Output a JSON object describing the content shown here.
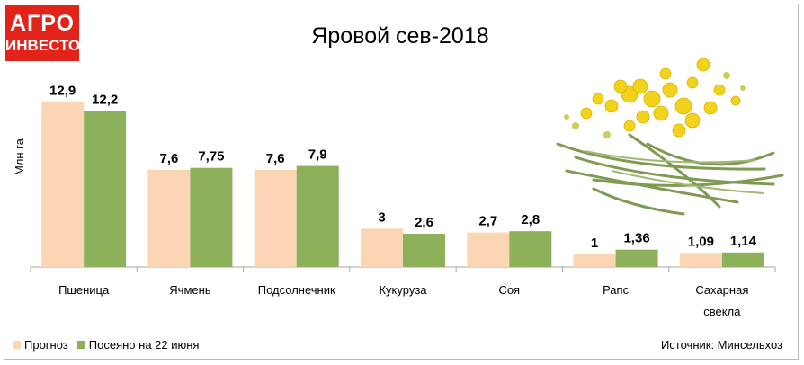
{
  "logo": {
    "line1": "АГРО",
    "line2": "ИНВЕСТОР",
    "color": "#e2231a"
  },
  "source": "Источник: Минсельхоз",
  "chart_data": {
    "type": "bar",
    "title": "Яровой сев-2018",
    "ylabel": "Млн га",
    "xlabel": "",
    "ylim": [
      0,
      14.5
    ],
    "grid": false,
    "legend_position": "bottom-left",
    "categories": [
      "Пшеница",
      "Ячмень",
      "Подсолнечник",
      "Кукуруза",
      "Соя",
      "Рапс",
      "Сахарная свекла"
    ],
    "series": [
      {
        "name": "Прогноз",
        "color": "#fcd5b5",
        "values": [
          12.9,
          7.6,
          7.6,
          3,
          2.7,
          1,
          1.09
        ],
        "labels": [
          "12,9",
          "7,6",
          "7,6",
          "3",
          "2,7",
          "1",
          "1,09"
        ]
      },
      {
        "name": "Посеяно на 22 июня",
        "color": "#8db05a",
        "values": [
          12.2,
          7.75,
          7.9,
          2.6,
          2.8,
          1.36,
          1.14
        ],
        "labels": [
          "12,2",
          "7,75",
          "7,9",
          "2,6",
          "2,8",
          "1,36",
          "1,14"
        ]
      }
    ]
  }
}
